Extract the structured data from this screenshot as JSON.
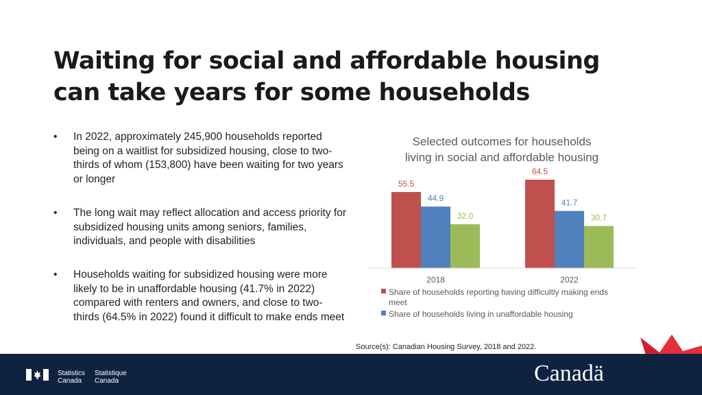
{
  "title": "Waiting for social and affordable housing can take years for some households",
  "bullets": [
    "In 2022, approximately 245,900 households reported being on a waitlist for subsidized housing, close to two-thirds of whom (153,800) have been waiting for two years or longer",
    "The long wait may reflect allocation and access priority for subsidized housing units among seniors, families, individuals, and people with disabilities",
    "Households waiting for subsidized housing were more likely to be in unaffordable housing (41.7% in 2022) compared with renters and owners, and close to two-thirds (64.5% in 2022) found it difficult to make ends meet"
  ],
  "bullet_marker": "•",
  "chart_data": {
    "type": "bar",
    "title_lines": [
      "Selected outcomes for households",
      "living in social and affordable housing"
    ],
    "categories": [
      "2018",
      "2022"
    ],
    "series": [
      {
        "name": "Share of households reporting having difficultly making ends meet",
        "values": [
          55.5,
          64.5
        ],
        "labels": [
          "55.5",
          "64.5"
        ],
        "color": "#c0504d"
      },
      {
        "name": "Share of households living in unaffordable housing",
        "values": [
          44.9,
          41.7
        ],
        "labels": [
          "44.9",
          "41.7"
        ],
        "color": "#4f81bd"
      },
      {
        "name": "",
        "values": [
          32.0,
          30.7
        ],
        "labels": [
          "32.0",
          "30.7"
        ],
        "color": "#9bbb59"
      }
    ],
    "ylim": [
      0,
      70
    ],
    "grid": false,
    "legend_position": "bottom"
  },
  "source": "Source(s): Canadian Housing Survey, 2018 and 2022.",
  "footer": {
    "stat_en_1": "Statistics",
    "stat_en_2": "Canada",
    "stat_fr_1": "Statistique",
    "stat_fr_2": "Canada",
    "wordmark": "Canadä",
    "background": "#0d2340"
  }
}
